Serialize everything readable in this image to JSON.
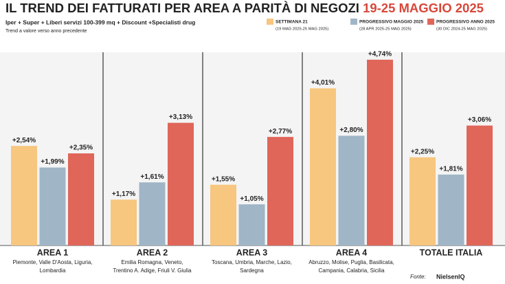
{
  "chart_data": {
    "type": "bar",
    "title": "IL TREND DEI FATTURATI PER AREA A PARITÀ DI NEGOZI",
    "title_dates": "19-25 MAGGIO 2025",
    "subtitle": "Iper + Super + Liberi servizi 100-399 mq + Discount +Specialisti drug",
    "note": "Trend a valore verso anno precedente",
    "categories": [
      "AREA 1",
      "AREA 2",
      "AREA 3",
      "AREA 4",
      "TOTALE ITALIA"
    ],
    "category_notes": [
      [
        "Piemonte, Valle D'Aosta, Liguria,",
        "Lombardia"
      ],
      [
        "Emilia Romagna, Veneto,",
        "Trentino A. Adige, Friuli V. Giulia"
      ],
      [
        "Toscana, Umbria, Marche, Lazio,",
        "Sardegna"
      ],
      [
        "Abruzzo, Molise, Puglia, Basilicata,",
        "Campania, Calabria, Sicilia"
      ],
      []
    ],
    "series": [
      {
        "name": "SETTIMANA 21",
        "period": "(19 MAG 2025-25 MAG 2025)",
        "color": "#f7c67f",
        "values": [
          2.54,
          1.17,
          1.55,
          4.01,
          2.25
        ],
        "value_labels": [
          "+2,54%",
          "+1,17%",
          "+1,55%",
          "+4,01%",
          "+2,25%"
        ]
      },
      {
        "name": "PROGRESSIVO MAGGIO 2025",
        "period": "(28 APR 2025-25 MAG 2025)",
        "color": "#a0b6c7",
        "values": [
          1.99,
          1.61,
          1.05,
          2.8,
          1.81
        ],
        "value_labels": [
          "+1,99%",
          "+1,61%",
          "+1,05%",
          "+2,80%",
          "+1,81%"
        ]
      },
      {
        "name": "PROGRESSIVO ANNO 2025",
        "period": "(30 DIC 2024-25 MAG 2025)",
        "color": "#e0665a",
        "values": [
          2.35,
          3.13,
          2.77,
          4.74,
          3.06
        ],
        "value_labels": [
          "+2,35%",
          "+3,13%",
          "+2,77%",
          "+4,74%",
          "+3,06%"
        ]
      }
    ],
    "source_label": "Fonte:",
    "source": "NielsenIQ"
  }
}
